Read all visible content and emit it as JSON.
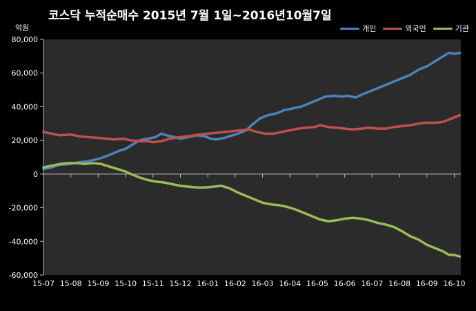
{
  "title": "코스닥  누적순매수 2015년 7월 1일~2016년10월7일",
  "unit_label": "억원",
  "legend": [
    {
      "name": "개인",
      "color": "#4f81bd"
    },
    {
      "name": "외국인",
      "color": "#c0504d"
    },
    {
      "name": "기관",
      "color": "#9bbb59"
    }
  ],
  "chart_data": {
    "type": "line",
    "ylim": [
      -60000,
      80000
    ],
    "y_ticks": [
      80000,
      60000,
      40000,
      20000,
      0,
      -20000,
      -40000,
      -60000
    ],
    "y_tick_labels": [
      "80,000",
      "60,000",
      "40,000",
      "20,000",
      "0",
      "-20,000",
      "-40,000",
      "-60,000"
    ],
    "x_ticks": [
      "15-07",
      "15-08",
      "15-09",
      "15-10",
      "15-11",
      "15-12",
      "16-01",
      "16-02",
      "16-03",
      "16-04",
      "16-05",
      "16-06",
      "16-07",
      "16-08",
      "16-09",
      "16-10"
    ],
    "x_position_range": [
      0,
      15.2
    ],
    "grid": false,
    "legend_position": "top-right",
    "series": [
      {
        "name": "개인",
        "color": "#4f81bd",
        "points": [
          [
            0,
            3000
          ],
          [
            0.3,
            4000
          ],
          [
            0.6,
            5500
          ],
          [
            1,
            6000
          ],
          [
            1.3,
            7000
          ],
          [
            1.6,
            7500
          ],
          [
            2,
            9000
          ],
          [
            2.2,
            10000
          ],
          [
            2.5,
            12000
          ],
          [
            2.8,
            14000
          ],
          [
            3,
            15000
          ],
          [
            3.2,
            17000
          ],
          [
            3.5,
            20000
          ],
          [
            3.8,
            21000
          ],
          [
            4.1,
            22000
          ],
          [
            4.3,
            24000
          ],
          [
            4.5,
            23000
          ],
          [
            4.8,
            22000
          ],
          [
            5,
            21000
          ],
          [
            5.3,
            22000
          ],
          [
            5.6,
            23000
          ],
          [
            5.9,
            22500
          ],
          [
            6.1,
            21000
          ],
          [
            6.3,
            20500
          ],
          [
            6.6,
            21500
          ],
          [
            6.9,
            23000
          ],
          [
            7.1,
            24000
          ],
          [
            7.4,
            26000
          ],
          [
            7.6,
            29000
          ],
          [
            7.9,
            33000
          ],
          [
            8.2,
            35000
          ],
          [
            8.5,
            36000
          ],
          [
            8.8,
            38000
          ],
          [
            9.1,
            39000
          ],
          [
            9.4,
            40000
          ],
          [
            9.7,
            42000
          ],
          [
            10,
            44000
          ],
          [
            10.3,
            46000
          ],
          [
            10.6,
            46500
          ],
          [
            10.9,
            46000
          ],
          [
            11.1,
            46500
          ],
          [
            11.4,
            45500
          ],
          [
            11.6,
            47000
          ],
          [
            11.9,
            49000
          ],
          [
            12.2,
            51000
          ],
          [
            12.5,
            53000
          ],
          [
            12.8,
            55000
          ],
          [
            13.1,
            57000
          ],
          [
            13.4,
            59000
          ],
          [
            13.7,
            62000
          ],
          [
            14,
            64000
          ],
          [
            14.3,
            67000
          ],
          [
            14.6,
            70000
          ],
          [
            14.8,
            72000
          ],
          [
            15.0,
            71500
          ],
          [
            15.2,
            72000
          ]
        ]
      },
      {
        "name": "외국인",
        "color": "#c0504d",
        "points": [
          [
            0,
            25000
          ],
          [
            0.3,
            24000
          ],
          [
            0.6,
            23000
          ],
          [
            1,
            23500
          ],
          [
            1.3,
            22500
          ],
          [
            1.6,
            22000
          ],
          [
            2,
            21500
          ],
          [
            2.3,
            21000
          ],
          [
            2.6,
            20500
          ],
          [
            2.9,
            21000
          ],
          [
            3.2,
            20000
          ],
          [
            3.5,
            19500
          ],
          [
            3.8,
            19500
          ],
          [
            4,
            19000
          ],
          [
            4.3,
            19500
          ],
          [
            4.6,
            21000
          ],
          [
            5,
            22000
          ],
          [
            5.3,
            22500
          ],
          [
            5.7,
            23500
          ],
          [
            6,
            24000
          ],
          [
            6.3,
            24500
          ],
          [
            6.6,
            25000
          ],
          [
            6.9,
            25500
          ],
          [
            7.2,
            26000
          ],
          [
            7.5,
            26500
          ],
          [
            7.8,
            25000
          ],
          [
            8.1,
            24000
          ],
          [
            8.4,
            24000
          ],
          [
            8.7,
            25000
          ],
          [
            9,
            26000
          ],
          [
            9.3,
            27000
          ],
          [
            9.6,
            27500
          ],
          [
            9.9,
            28000
          ],
          [
            10.1,
            29000
          ],
          [
            10.4,
            28000
          ],
          [
            10.7,
            27500
          ],
          [
            11,
            27000
          ],
          [
            11.3,
            26500
          ],
          [
            11.6,
            27000
          ],
          [
            11.9,
            27500
          ],
          [
            12.2,
            27000
          ],
          [
            12.5,
            27000
          ],
          [
            12.8,
            28000
          ],
          [
            13.1,
            28500
          ],
          [
            13.4,
            29000
          ],
          [
            13.7,
            30000
          ],
          [
            14,
            30500
          ],
          [
            14.3,
            30500
          ],
          [
            14.6,
            31000
          ],
          [
            14.9,
            33000
          ],
          [
            15.2,
            35000
          ]
        ]
      },
      {
        "name": "기관",
        "color": "#9bbb59",
        "points": [
          [
            0,
            4000
          ],
          [
            0.3,
            5000
          ],
          [
            0.6,
            6000
          ],
          [
            0.9,
            6500
          ],
          [
            1.2,
            6500
          ],
          [
            1.5,
            6000
          ],
          [
            1.8,
            6500
          ],
          [
            2.1,
            6000
          ],
          [
            2.4,
            4500
          ],
          [
            2.7,
            3000
          ],
          [
            3,
            1500
          ],
          [
            3.2,
            0
          ],
          [
            3.5,
            -2000
          ],
          [
            3.8,
            -3500
          ],
          [
            4.1,
            -4500
          ],
          [
            4.4,
            -5000
          ],
          [
            4.7,
            -6000
          ],
          [
            5,
            -7000
          ],
          [
            5.3,
            -7500
          ],
          [
            5.6,
            -8000
          ],
          [
            5.9,
            -8000
          ],
          [
            6.2,
            -7500
          ],
          [
            6.5,
            -7000
          ],
          [
            6.8,
            -8500
          ],
          [
            7.1,
            -11000
          ],
          [
            7.4,
            -13000
          ],
          [
            7.7,
            -15000
          ],
          [
            8,
            -17000
          ],
          [
            8.3,
            -18000
          ],
          [
            8.6,
            -18500
          ],
          [
            8.9,
            -19500
          ],
          [
            9.2,
            -21000
          ],
          [
            9.5,
            -23000
          ],
          [
            9.8,
            -25000
          ],
          [
            10.1,
            -27000
          ],
          [
            10.4,
            -28000
          ],
          [
            10.7,
            -27500
          ],
          [
            11,
            -26500
          ],
          [
            11.3,
            -26000
          ],
          [
            11.6,
            -26500
          ],
          [
            11.9,
            -27500
          ],
          [
            12.2,
            -29000
          ],
          [
            12.5,
            -30000
          ],
          [
            12.8,
            -31500
          ],
          [
            13.1,
            -34000
          ],
          [
            13.4,
            -37000
          ],
          [
            13.7,
            -39000
          ],
          [
            14,
            -42000
          ],
          [
            14.3,
            -44000
          ],
          [
            14.6,
            -46000
          ],
          [
            14.8,
            -48000
          ],
          [
            15.0,
            -48000
          ],
          [
            15.2,
            -49000
          ]
        ]
      }
    ]
  }
}
